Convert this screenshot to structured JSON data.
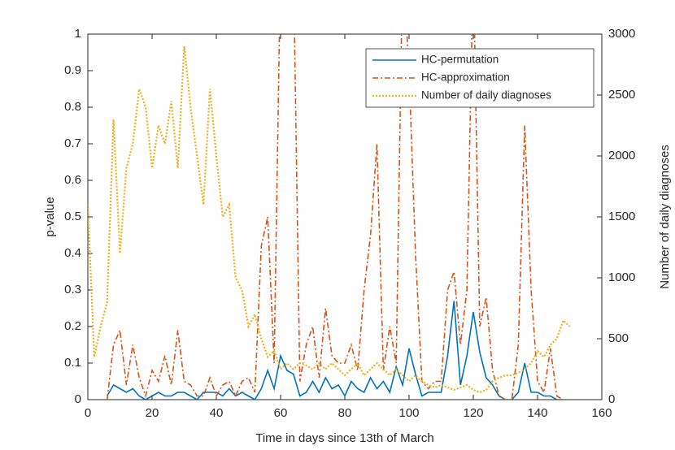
{
  "chart_data": {
    "type": "line",
    "xlabel": "Time in days since 13th of March",
    "ylabel": "p-value",
    "y2label": "Number of daily diagnoses",
    "xlim": [
      0,
      160
    ],
    "xticks": [
      0,
      20,
      40,
      60,
      80,
      100,
      120,
      140,
      160
    ],
    "ylim": [
      0,
      1
    ],
    "yticks": [
      0,
      0.1,
      0.2,
      0.3,
      0.4,
      0.5,
      0.6,
      0.7,
      0.8,
      0.9,
      1
    ],
    "y2lim": [
      0,
      3000
    ],
    "y2ticks": [
      0,
      500,
      1000,
      1500,
      2000,
      2500,
      3000
    ],
    "legend": "top-right",
    "x": [
      0,
      2,
      4,
      6,
      8,
      10,
      12,
      14,
      16,
      18,
      20,
      22,
      24,
      26,
      28,
      30,
      32,
      34,
      36,
      38,
      40,
      42,
      44,
      46,
      48,
      50,
      52,
      54,
      56,
      58,
      60,
      62,
      64,
      66,
      68,
      70,
      72,
      74,
      76,
      78,
      80,
      82,
      84,
      86,
      88,
      90,
      92,
      94,
      96,
      98,
      100,
      102,
      104,
      106,
      108,
      110,
      112,
      114,
      116,
      118,
      120,
      122,
      124,
      126,
      128,
      130,
      132,
      134,
      136,
      138,
      140,
      142,
      144,
      146,
      148,
      150
    ],
    "series": [
      {
        "name": "HC-permutation",
        "color": "#0072BD",
        "style": "solid",
        "values": [
          null,
          null,
          null,
          0.01,
          0.04,
          0.03,
          0.02,
          0.03,
          0.01,
          0,
          0.01,
          0.02,
          0.01,
          0.01,
          0.02,
          0.02,
          0.01,
          0,
          0.02,
          0.02,
          0.02,
          0.01,
          0.03,
          0.01,
          0.02,
          0.01,
          0,
          0.03,
          0.08,
          0.03,
          0.12,
          0.08,
          0.07,
          0.01,
          0.02,
          0.05,
          0.02,
          0.06,
          0.03,
          0.04,
          0.01,
          0.05,
          0.03,
          0.02,
          0.06,
          0.03,
          0.05,
          0.02,
          0.09,
          0.04,
          0.14,
          0.07,
          0.01,
          0.02,
          0.02,
          0.02,
          0.12,
          0.27,
          0.04,
          0.12,
          0.24,
          0.13,
          0.06,
          0.04,
          0.01,
          0,
          0,
          0.02,
          0.1,
          0.02,
          0.02,
          0.01,
          0.01,
          0,
          0,
          null
        ]
      },
      {
        "name": "HC-approximation",
        "color": "#D95319",
        "style": "dashdot",
        "values": [
          null,
          null,
          null,
          0,
          0.15,
          0.19,
          0.04,
          0.15,
          0.06,
          0.01,
          0.08,
          0.05,
          0.12,
          0.04,
          0.19,
          0.05,
          0.04,
          0.01,
          0.01,
          0.06,
          0.01,
          0.04,
          0.05,
          0.01,
          0.05,
          0.06,
          0.02,
          0.42,
          0.5,
          0.1,
          1.2,
          1.0,
          1.2,
          0.05,
          0.15,
          0.2,
          0.06,
          0.25,
          0.12,
          0.1,
          0.1,
          0.15,
          0.08,
          0.3,
          0.45,
          0.7,
          0.08,
          0.2,
          0.1,
          1.2,
          0.9,
          0.4,
          0.05,
          0.03,
          0.05,
          0.05,
          0.3,
          0.35,
          0.15,
          0.3,
          1.2,
          0.2,
          0.28,
          0.08,
          0.01,
          0,
          0,
          0.15,
          0.75,
          0.3,
          0.05,
          0.02,
          0.14,
          0.01,
          0,
          null
        ]
      },
      {
        "name": "Number of daily diagnoses",
        "color": "#EDB120",
        "style": "dotted",
        "axis": "y2",
        "values": [
          1600,
          350,
          600,
          800,
          2300,
          1200,
          1900,
          2100,
          2550,
          2400,
          1900,
          2250,
          2100,
          2450,
          1900,
          2900,
          2400,
          2000,
          1600,
          2550,
          2000,
          1500,
          1600,
          1000,
          900,
          600,
          700,
          500,
          350,
          400,
          250,
          300,
          250,
          300,
          280,
          250,
          300,
          250,
          300,
          250,
          200,
          250,
          300,
          200,
          250,
          300,
          250,
          200,
          250,
          200,
          150,
          200,
          150,
          120,
          100,
          120,
          100,
          80,
          100,
          120,
          80,
          60,
          80,
          150,
          180,
          200,
          200,
          220,
          250,
          300,
          400,
          350,
          450,
          500,
          650,
          600
        ]
      }
    ]
  }
}
